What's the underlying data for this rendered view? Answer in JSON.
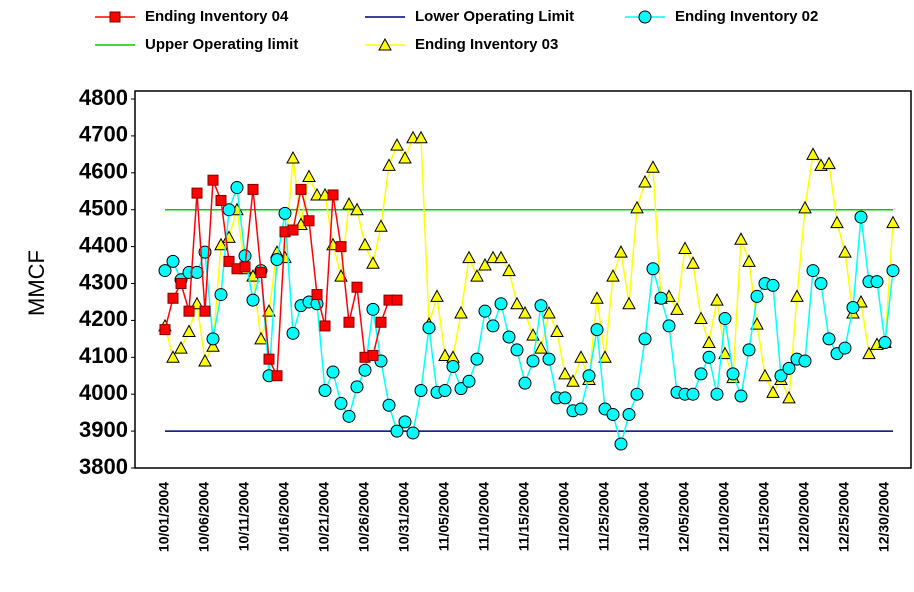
{
  "chart_data": {
    "type": "line",
    "y_label": "MMCF",
    "categories": [
      "10/01/2004",
      null,
      null,
      null,
      null,
      "10/06/2004",
      null,
      null,
      null,
      null,
      "10/11/2004",
      null,
      null,
      null,
      null,
      "10/16/2004",
      null,
      null,
      null,
      null,
      "10/21/2004",
      null,
      null,
      null,
      null,
      "10/26/2004",
      null,
      null,
      null,
      null,
      "10/31/2004",
      null,
      null,
      null,
      null,
      "11/05/2004",
      null,
      null,
      null,
      null,
      "11/10/2004",
      null,
      null,
      null,
      null,
      "11/15/2004",
      null,
      null,
      null,
      null,
      "11/20/2004",
      null,
      null,
      null,
      null,
      "11/25/2004",
      null,
      null,
      null,
      null,
      "11/30/2004",
      null,
      null,
      null,
      null,
      "12/05/2004",
      null,
      null,
      null,
      null,
      "12/10/2004",
      null,
      null,
      null,
      null,
      "12/15/2004",
      null,
      null,
      null,
      null,
      "12/20/2004",
      null,
      null,
      null,
      null,
      "12/25/2004",
      null,
      null,
      null,
      null,
      "12/30/2004",
      null
    ],
    "ylim": [
      3800,
      4800
    ],
    "yticks": [
      3800,
      3900,
      4000,
      4100,
      4200,
      4300,
      4400,
      4500,
      4600,
      4700,
      4800
    ],
    "series": [
      {
        "name": "Ending Inventory 04",
        "color": "#ff0000",
        "marker": "square",
        "values": [
          4175,
          4260,
          4300,
          4225,
          4545,
          4225,
          4580,
          4525,
          4360,
          4340,
          4345,
          4555,
          4330,
          4095,
          4050,
          4440,
          4445,
          4555,
          4470,
          4270,
          4185,
          4540,
          4400,
          4195,
          4290,
          4100,
          4105,
          4195,
          4255,
          4255,
          null,
          null,
          null,
          null,
          null,
          null,
          null,
          null,
          null,
          null,
          null,
          null,
          null,
          null,
          null,
          null,
          null,
          null,
          null,
          null,
          null,
          null,
          null,
          null,
          null,
          null,
          null,
          null,
          null,
          null,
          null,
          null,
          null,
          null,
          null,
          null,
          null,
          null,
          null,
          null,
          null,
          null,
          null,
          null,
          null,
          null,
          null,
          null,
          null,
          null,
          null,
          null,
          null,
          null,
          null,
          null,
          null,
          null,
          null,
          null,
          null,
          null
        ]
      },
      {
        "name": "Lower Operating Limit",
        "color": "#000080",
        "values": [
          3900,
          3900,
          3900,
          3900,
          3900,
          3900,
          3900,
          3900,
          3900,
          3900,
          3900,
          3900,
          3900,
          3900,
          3900,
          3900,
          3900,
          3900,
          3900,
          3900,
          3900,
          3900,
          3900,
          3900,
          3900,
          3900,
          3900,
          3900,
          3900,
          3900,
          3900,
          3900,
          3900,
          3900,
          3900,
          3900,
          3900,
          3900,
          3900,
          3900,
          3900,
          3900,
          3900,
          3900,
          3900,
          3900,
          3900,
          3900,
          3900,
          3900,
          3900,
          3900,
          3900,
          3900,
          3900,
          3900,
          3900,
          3900,
          3900,
          3900,
          3900,
          3900,
          3900,
          3900,
          3900,
          3900,
          3900,
          3900,
          3900,
          3900,
          3900,
          3900,
          3900,
          3900,
          3900,
          3900,
          3900,
          3900,
          3900,
          3900,
          3900,
          3900,
          3900,
          3900,
          3900,
          3900,
          3900,
          3900,
          3900,
          3900,
          3900,
          3900
        ]
      },
      {
        "name": "Ending Inventory 02",
        "color": "#00ffff",
        "marker": "circle",
        "values": [
          4335,
          4360,
          4310,
          4330,
          4330,
          4385,
          4150,
          4270,
          4500,
          4560,
          4375,
          4255,
          4335,
          4050,
          4365,
          4490,
          4165,
          4240,
          4250,
          4245,
          4010,
          4060,
          3975,
          3940,
          4020,
          4065,
          4230,
          4090,
          3970,
          3900,
          3925,
          3895,
          4010,
          4180,
          4005,
          4010,
          4075,
          4015,
          4035,
          4095,
          4225,
          4185,
          4245,
          4155,
          4120,
          4030,
          4090,
          4240,
          4095,
          3990,
          3990,
          3955,
          3960,
          4050,
          4175,
          3960,
          3945,
          3865,
          3945,
          4000,
          4150,
          4340,
          4260,
          4185,
          4005,
          4000,
          4000,
          4055,
          4100,
          4000,
          4205,
          4055,
          3995,
          4120,
          4265,
          4300,
          4295,
          4050,
          4070,
          4095,
          4090,
          4335,
          4300,
          4150,
          4110,
          4125,
          4235,
          4480,
          4305,
          4305,
          4140,
          4335
        ]
      },
      {
        "name": "Upper Operating limit",
        "color": "#00cc00",
        "values": [
          4500,
          4500,
          4500,
          4500,
          4500,
          4500,
          4500,
          4500,
          4500,
          4500,
          4500,
          4500,
          4500,
          4500,
          4500,
          4500,
          4500,
          4500,
          4500,
          4500,
          4500,
          4500,
          4500,
          4500,
          4500,
          4500,
          4500,
          4500,
          4500,
          4500,
          4500,
          4500,
          4500,
          4500,
          4500,
          4500,
          4500,
          4500,
          4500,
          4500,
          4500,
          4500,
          4500,
          4500,
          4500,
          4500,
          4500,
          4500,
          4500,
          4500,
          4500,
          4500,
          4500,
          4500,
          4500,
          4500,
          4500,
          4500,
          4500,
          4500,
          4500,
          4500,
          4500,
          4500,
          4500,
          4500,
          4500,
          4500,
          4500,
          4500,
          4500,
          4500,
          4500,
          4500,
          4500,
          4500,
          4500,
          4500,
          4500,
          4500,
          4500,
          4500,
          4500,
          4500,
          4500,
          4500,
          4500,
          4500,
          4500,
          4500,
          4500,
          4500
        ]
      },
      {
        "name": "Ending Inventory 03",
        "color": "#ffff00",
        "marker": "triangle",
        "values": [
          4185,
          4100,
          4125,
          4170,
          4245,
          4090,
          4130,
          4405,
          4425,
          4500,
          4340,
          4320,
          4150,
          4225,
          4385,
          4370,
          4640,
          4460,
          4590,
          4540,
          4540,
          4405,
          4320,
          4515,
          4500,
          4405,
          4355,
          4455,
          4620,
          4675,
          4640,
          4695,
          4695,
          4190,
          4265,
          4105,
          4100,
          4220,
          4370,
          4320,
          4350,
          4370,
          4370,
          4335,
          4245,
          4220,
          4160,
          4125,
          4220,
          4170,
          4055,
          4035,
          4100,
          4040,
          4260,
          4100,
          4320,
          4385,
          4245,
          4505,
          4575,
          4615,
          4260,
          4265,
          4230,
          4395,
          4355,
          4205,
          4140,
          4255,
          4110,
          4045,
          4420,
          4360,
          4190,
          4050,
          4005,
          4040,
          3990,
          4265,
          4505,
          4650,
          4620,
          4625,
          4465,
          4385,
          4220,
          4250,
          4110,
          4135,
          4140,
          4465
        ]
      }
    ]
  }
}
